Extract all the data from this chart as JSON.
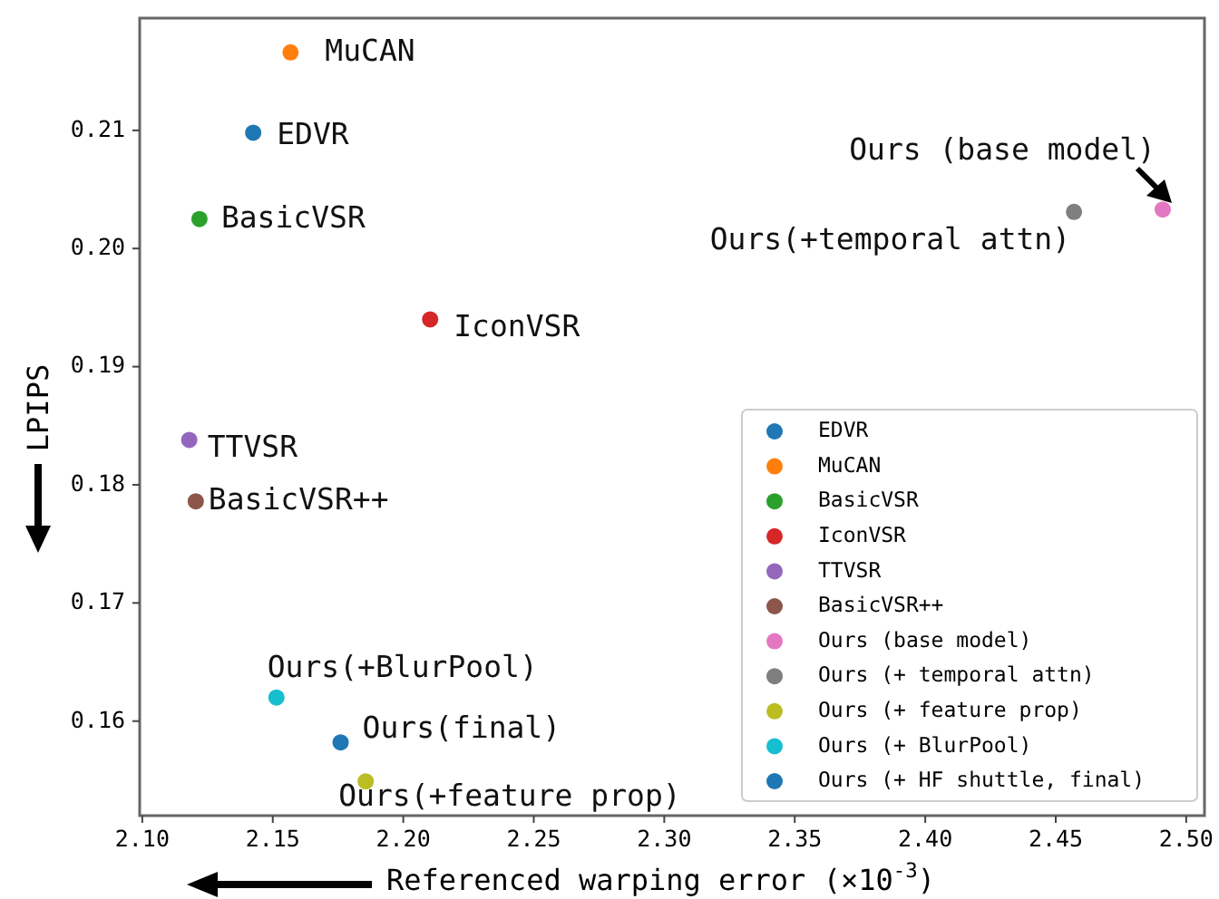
{
  "chart_data": {
    "type": "scatter",
    "xlabel": "Referenced warping error (×10$^{-3}$)",
    "ylabel": "LPIPS",
    "xlim": [
      2.099,
      2.507
    ],
    "ylim": [
      0.152,
      0.2195
    ],
    "xticks": [
      {
        "value": 2.1,
        "label": "2.10"
      },
      {
        "value": 2.15,
        "label": "2.15"
      },
      {
        "value": 2.2,
        "label": "2.20"
      },
      {
        "value": 2.25,
        "label": "2.25"
      },
      {
        "value": 2.3,
        "label": "2.30"
      },
      {
        "value": 2.35,
        "label": "2.35"
      },
      {
        "value": 2.4,
        "label": "2.40"
      },
      {
        "value": 2.45,
        "label": "2.45"
      },
      {
        "value": 2.5,
        "label": "2.50"
      }
    ],
    "yticks": [
      0.16,
      0.17,
      0.18,
      0.19,
      {
        "value": 0.2,
        "label": "0.20"
      },
      0.21
    ],
    "marker": "circle",
    "grid": false,
    "legend": "bottom right",
    "series": [
      {
        "name": "EDVR",
        "color": "#1f77b4",
        "x": [
          2.1425
        ],
        "values": [
          0.2098
        ]
      },
      {
        "name": "MuCAN",
        "color": "#ff7f0e",
        "x": [
          2.1568
        ],
        "values": [
          0.2166
        ]
      },
      {
        "name": "BasicVSR",
        "color": "#2ca02c",
        "x": [
          2.1219
        ],
        "values": [
          0.2025
        ]
      },
      {
        "name": "IconVSR",
        "color": "#d62728",
        "x": [
          2.2103
        ],
        "values": [
          0.194
        ]
      },
      {
        "name": "TTVSR",
        "color": "#9467bd",
        "x": [
          2.118
        ],
        "values": [
          0.1838
        ]
      },
      {
        "name": "BasicVSR++",
        "color": "#8c564b",
        "x": [
          2.1205
        ],
        "values": [
          0.1786
        ]
      },
      {
        "name": "Ours (base model)",
        "color": "#e377c2",
        "x": [
          2.491
        ],
        "values": [
          0.2033
        ]
      },
      {
        "name": "Ours (+ temporal attn)",
        "color": "#7f7f7f",
        "x": [
          2.457
        ],
        "values": [
          0.2031
        ]
      },
      {
        "name": "Ours (+ feature prop)",
        "color": "#bcbd22",
        "x": [
          2.1856
        ],
        "values": [
          0.1549
        ]
      },
      {
        "name": "Ours (+ BlurPool)",
        "color": "#17becf",
        "x": [
          2.1514
        ],
        "values": [
          0.162
        ]
      },
      {
        "name": "Ours (+ HF shuttle, final)",
        "color": "#1f77b4",
        "x": [
          2.176
        ],
        "values": [
          0.1582
        ]
      }
    ],
    "annotations": [
      {
        "text": "MuCAN",
        "x": 2.1568,
        "y": 0.2166
      },
      {
        "text": "EDVR",
        "x": 2.1425,
        "y": 0.2098
      },
      {
        "text": "BasicVSR",
        "x": 2.1219,
        "y": 0.2025
      },
      {
        "text": "IconVSR",
        "x": 2.2103,
        "y": 0.194
      },
      {
        "text": "TTVSR",
        "x": 2.118,
        "y": 0.1838
      },
      {
        "text": "BasicVSR++",
        "x": 2.1205,
        "y": 0.1786
      },
      {
        "text": "Ours (base model)",
        "x": 2.491,
        "y": 0.2033
      },
      {
        "text": "Ours(+temporal attn)",
        "x": 2.457,
        "y": 0.2031
      },
      {
        "text": "Ours(+BlurPool)",
        "x": 2.1514,
        "y": 0.162
      },
      {
        "text": "Ours(final)",
        "x": 2.176,
        "y": 0.1582
      },
      {
        "text": "Ours(+feature prop)",
        "x": 2.1856,
        "y": 0.1549
      }
    ]
  }
}
